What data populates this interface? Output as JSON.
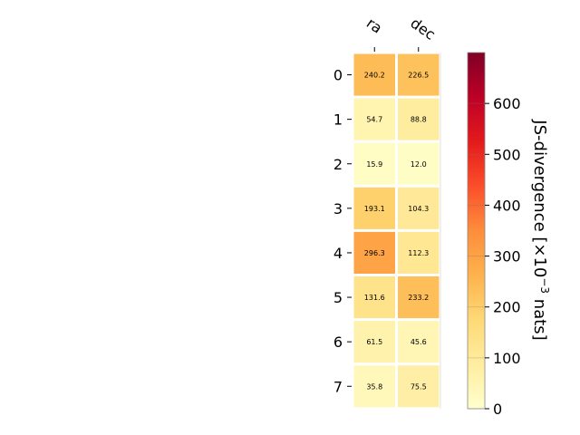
{
  "chart_data": {
    "type": "heatmap",
    "columns": [
      "ra",
      "dec"
    ],
    "rows": [
      "0",
      "1",
      "2",
      "3",
      "4",
      "5",
      "6",
      "7"
    ],
    "values": [
      [
        240.2,
        226.5
      ],
      [
        54.7,
        88.8
      ],
      [
        15.9,
        12.0
      ],
      [
        193.1,
        104.3
      ],
      [
        296.3,
        112.3
      ],
      [
        131.6,
        233.2
      ],
      [
        61.5,
        45.6
      ],
      [
        35.8,
        75.5
      ]
    ],
    "value_labels": [
      [
        "240.2",
        "226.5"
      ],
      [
        "54.7",
        "88.8"
      ],
      [
        "15.9",
        "12.0"
      ],
      [
        "193.1",
        "104.3"
      ],
      [
        "296.3",
        "112.3"
      ],
      [
        "131.6",
        "233.2"
      ],
      [
        "61.5",
        "45.6"
      ],
      [
        "35.8",
        "75.5"
      ]
    ],
    "colorbar": {
      "label_main": "JS-divergence [×10",
      "label_exp": "−3",
      "label_end": " nats]",
      "range": [
        0,
        700
      ],
      "ticks": [
        "0",
        "100",
        "200",
        "300",
        "400",
        "500",
        "600"
      ],
      "colormap": "YlOrRd"
    }
  }
}
